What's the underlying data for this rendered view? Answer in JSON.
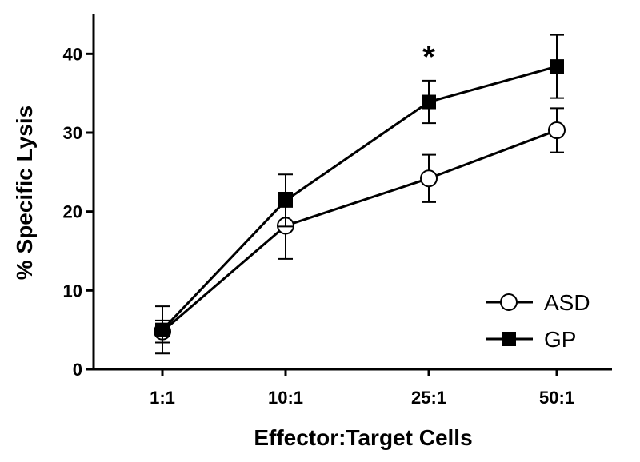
{
  "chart_data": {
    "type": "line",
    "title": "",
    "xlabel": "Effector:Target Cells",
    "ylabel": "% Specific Lysis",
    "categories": [
      "1:1",
      "10:1",
      "25:1",
      "50:1"
    ],
    "ylim": [
      0,
      45
    ],
    "yticks": [
      0,
      10,
      20,
      30,
      40
    ],
    "grid": false,
    "legend_position": "bottom-right",
    "series": [
      {
        "name": "ASD",
        "marker": "open-circle",
        "color": "#000000",
        "values": [
          4.8,
          18.2,
          24.2,
          30.3
        ],
        "error": [
          1.4,
          4.2,
          3.0,
          2.8
        ]
      },
      {
        "name": "GP",
        "marker": "filled-square",
        "color": "#000000",
        "values": [
          5.0,
          21.4,
          33.9,
          38.4
        ],
        "error": [
          3.0,
          3.3,
          2.7,
          4.0
        ]
      }
    ],
    "annotations": [
      {
        "text": "*",
        "category": "25:1",
        "y": 40.5
      }
    ]
  }
}
